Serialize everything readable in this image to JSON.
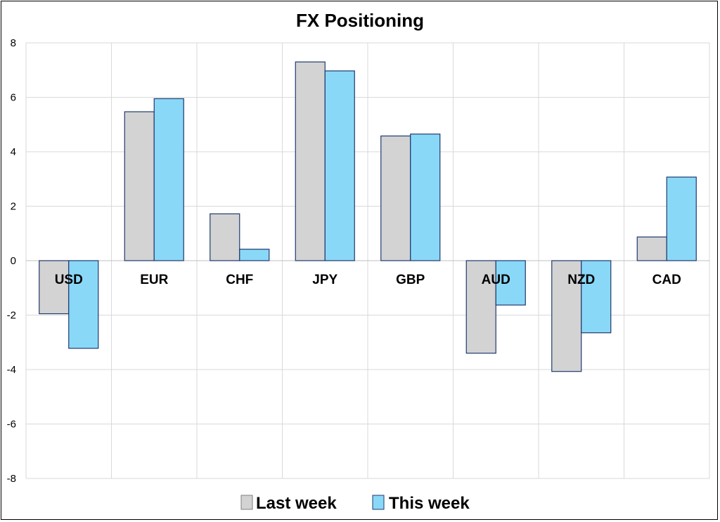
{
  "chart_data": {
    "type": "bar",
    "title": "FX Positioning",
    "categories": [
      "USD",
      "EUR",
      "CHF",
      "JPY",
      "GBP",
      "AUD",
      "NZD",
      "CAD"
    ],
    "series": [
      {
        "name": "Last week",
        "color": "#d3d3d3",
        "values": [
          -1.95,
          5.47,
          1.72,
          7.3,
          4.58,
          -3.4,
          -4.07,
          0.87
        ]
      },
      {
        "name": "This week",
        "color": "#8ad8f7",
        "values": [
          -3.22,
          5.95,
          0.42,
          6.97,
          4.65,
          -1.63,
          -2.65,
          3.07
        ]
      }
    ],
    "ylim": [
      -8,
      8
    ],
    "yticks": [
      "8",
      "6",
      "4",
      "2",
      "0",
      "-2",
      "-4",
      "-6",
      "-8"
    ],
    "grid": true,
    "legend": "bottom",
    "bar_border_color": "#1f3a6e"
  }
}
